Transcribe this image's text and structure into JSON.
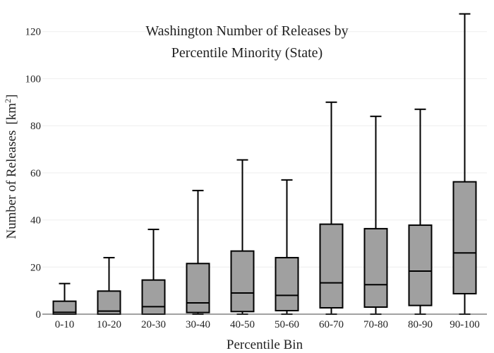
{
  "chart_data": {
    "type": "box",
    "title": [
      "Washington Number of Releases by",
      "Percentile Minority (State)"
    ],
    "xlabel": "Percentile Bin",
    "ylabel": "Number of Releases",
    "ylabel_unit_base": "[km",
    "ylabel_unit_sup": "2",
    "ylabel_unit_close": "]",
    "ylim": [
      0,
      128
    ],
    "yticks": [
      0,
      20,
      40,
      60,
      80,
      100,
      120
    ],
    "grid": true,
    "box_color": "#a0a0a0",
    "categories": [
      "0-10",
      "10-20",
      "20-30",
      "30-40",
      "40-50",
      "50-60",
      "60-70",
      "70-80",
      "80-90",
      "90-100"
    ],
    "boxes": [
      {
        "min": 0,
        "q1": 0,
        "median": 0.8,
        "q3": 5.5,
        "max": 13
      },
      {
        "min": 0,
        "q1": 0,
        "median": 1.3,
        "q3": 9.8,
        "max": 24
      },
      {
        "min": 0,
        "q1": 0,
        "median": 3.2,
        "q3": 14.5,
        "max": 36
      },
      {
        "min": 0,
        "q1": 0.7,
        "median": 4.8,
        "q3": 21.5,
        "max": 52.5
      },
      {
        "min": 0,
        "q1": 1.1,
        "median": 9,
        "q3": 26.8,
        "max": 65.5
      },
      {
        "min": 0,
        "q1": 1.5,
        "median": 8,
        "q3": 24,
        "max": 57
      },
      {
        "min": 0,
        "q1": 2.7,
        "median": 13.3,
        "q3": 38.2,
        "max": 90
      },
      {
        "min": 0,
        "q1": 3,
        "median": 12.5,
        "q3": 36.3,
        "max": 84
      },
      {
        "min": 0,
        "q1": 3.7,
        "median": 18.3,
        "q3": 37.8,
        "max": 87
      },
      {
        "min": 0,
        "q1": 8.7,
        "median": 26,
        "q3": 56.2,
        "max": 127.5
      }
    ]
  }
}
